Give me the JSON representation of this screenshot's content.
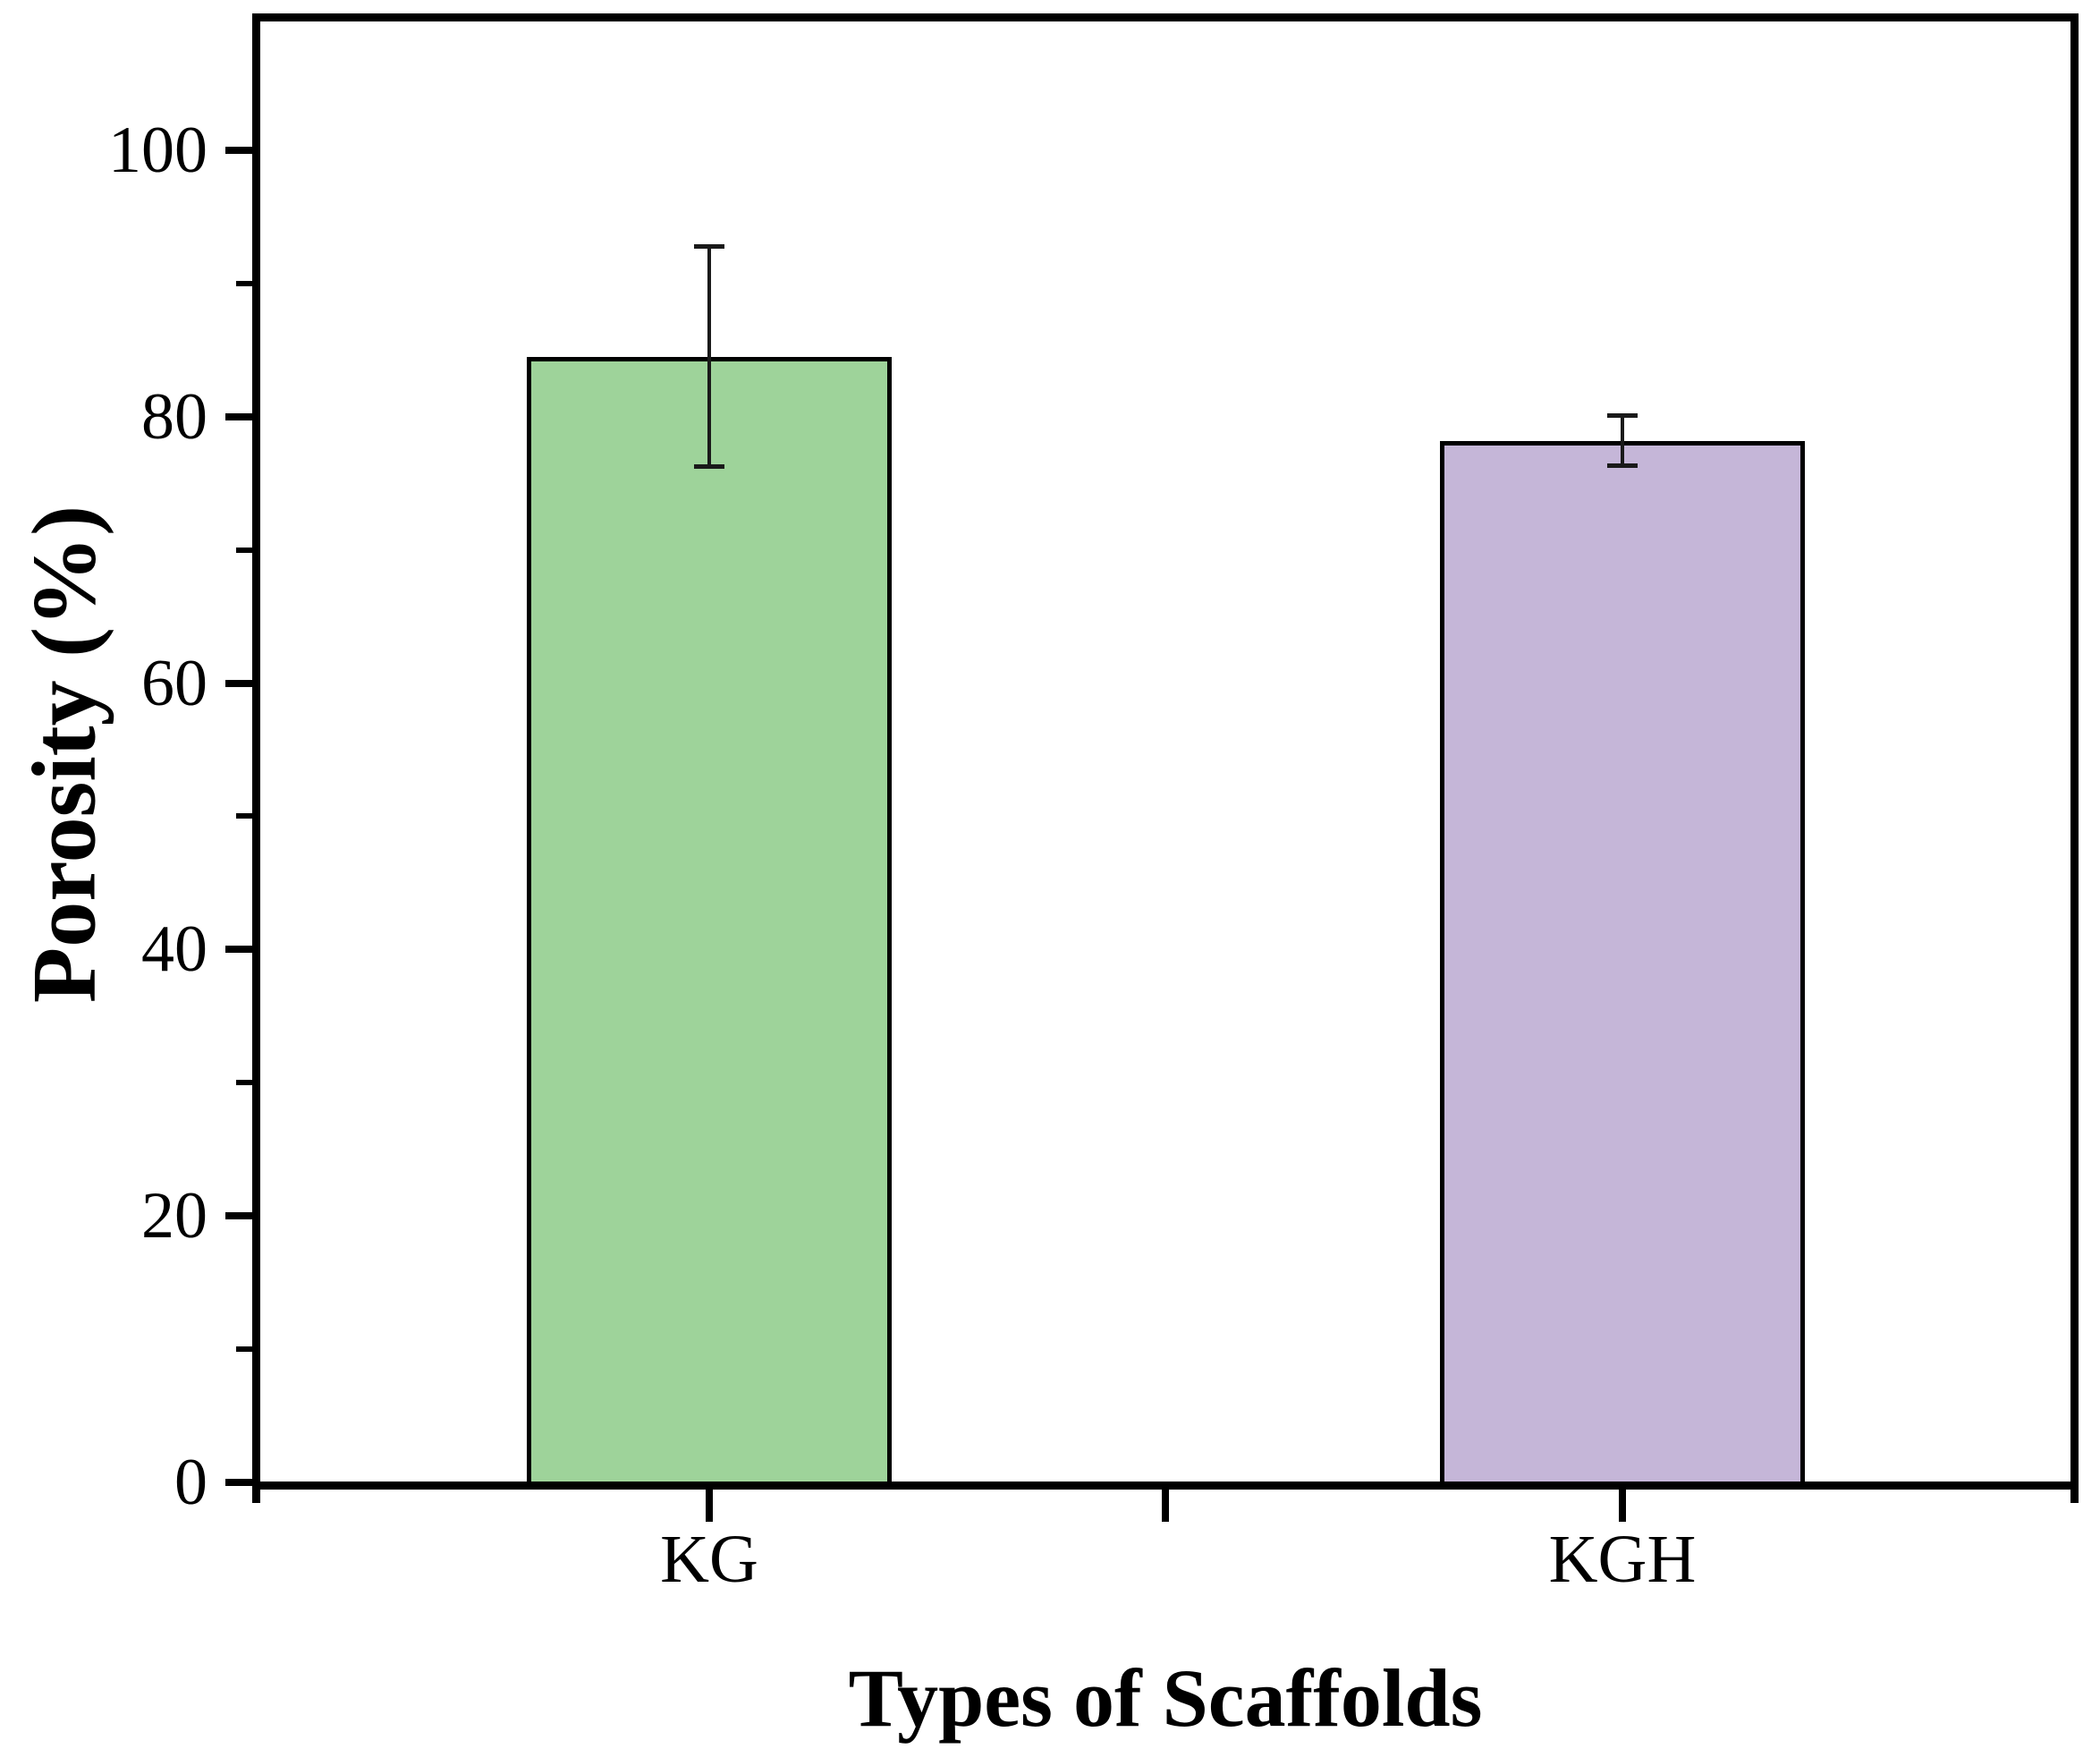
{
  "figure": {
    "background_color": "#ffffff",
    "text_color": "#000000"
  },
  "chart_data": {
    "type": "bar",
    "title": "",
    "xlabel": "Types of Scaffolds",
    "ylabel": "Porosity (%)",
    "categories": [
      "KG",
      "KGH"
    ],
    "values": [
      84.5,
      78.2
    ],
    "error_bars": [
      8.3,
      1.9
    ],
    "bar_colors": [
      "#9ED39A",
      "#C5B6D8"
    ],
    "bar_border_color": "#000000",
    "error_bar_color": "#1a1a1a",
    "axis_color": "#000000",
    "ylim": [
      0,
      110
    ],
    "ytick_values": [
      0,
      20,
      40,
      60,
      80,
      100
    ],
    "ytick_labels": [
      "0",
      "20",
      "40",
      "60",
      "80",
      "100"
    ],
    "ytick_minor_values": [
      10,
      30,
      50,
      70,
      90
    ],
    "grid": false,
    "legend_position": "none"
  }
}
